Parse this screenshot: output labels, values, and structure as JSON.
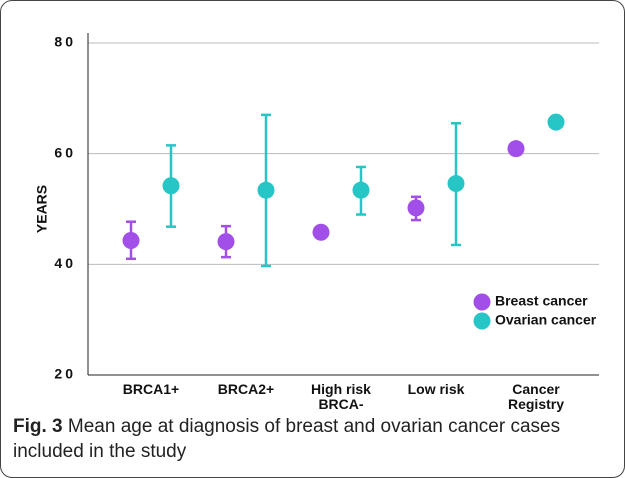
{
  "chart_data": {
    "type": "errorbar-points",
    "y_label": "YEARS",
    "categories": [
      "BRCA1+",
      "BRCA2+",
      "High risk BRCA-",
      "Low risk",
      "Cancer Registry"
    ],
    "series": [
      {
        "name": "Breast cancer",
        "color": "#a24ee8",
        "values": [
          44.3,
          44.1,
          45.8,
          50.2,
          60.9
        ],
        "lower": [
          41.0,
          41.3,
          null,
          48.0,
          null
        ],
        "upper": [
          47.7,
          46.9,
          null,
          52.2,
          null
        ]
      },
      {
        "name": "Ovarian cancer",
        "color": "#26c6c6",
        "values": [
          54.2,
          53.4,
          53.4,
          54.6,
          65.7
        ],
        "lower": [
          46.8,
          39.7,
          49.0,
          43.5,
          65.0
        ],
        "upper": [
          61.5,
          67.0,
          57.6,
          65.5,
          66.6
        ]
      }
    ],
    "ylim": [
      20,
      80
    ],
    "yticks": [
      20,
      40,
      60,
      80
    ],
    "grid": true,
    "legend": "lower right"
  },
  "caption": {
    "label": "Fig. 3",
    "text": "Mean age at diagnosis of breast and ovarian cancer cases included in the study"
  }
}
